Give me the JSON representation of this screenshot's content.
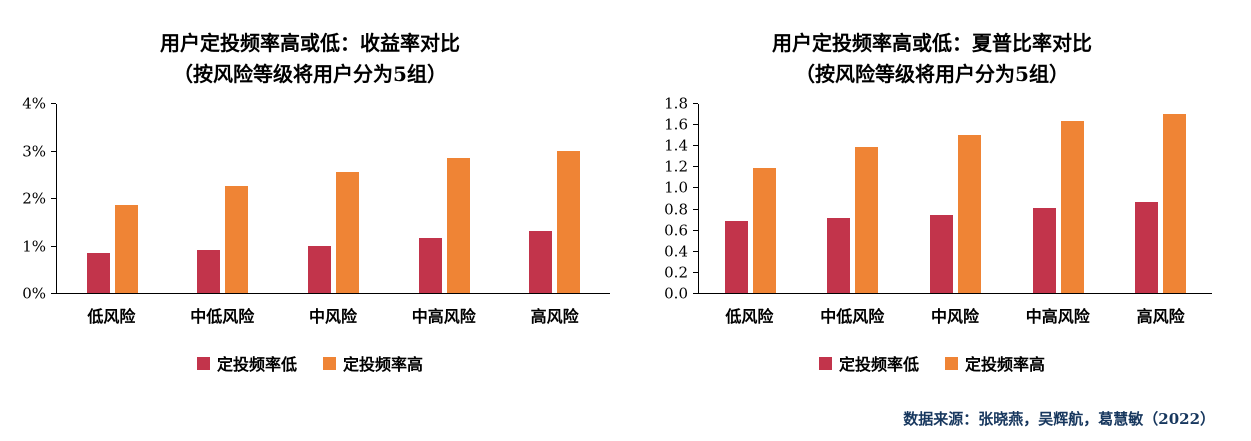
{
  "source_note": "数据来源：张晓燕，吴辉航，葛慧敏（2022）",
  "colors": {
    "series_low": "#C2344B",
    "series_high": "#EF8435",
    "axis": "#000000",
    "source_text": "#17375E"
  },
  "chart_data": [
    {
      "type": "bar",
      "title_line1": "用户定投频率高或低：收益率对比",
      "title_line2": "（按风险等级将用户分为5组）",
      "categories": [
        "低风险",
        "中低风险",
        "中风险",
        "中高风险",
        "高风险"
      ],
      "series": [
        {
          "key": "low-frequency",
          "name": "定投频率低",
          "color_key": "series_low",
          "values": [
            0.85,
            0.9,
            1.0,
            1.15,
            1.3
          ]
        },
        {
          "key": "high-frequency",
          "name": "定投频率高",
          "color_key": "series_high",
          "values": [
            1.85,
            2.25,
            2.55,
            2.85,
            3.0
          ]
        }
      ],
      "ylim": [
        0,
        4
      ],
      "yticks": [
        "0%",
        "1%",
        "2%",
        "3%",
        "4%"
      ],
      "unit": "%",
      "grid": false,
      "legend_position": "bottom"
    },
    {
      "type": "bar",
      "title_line1": "用户定投频率高或低：夏普比率对比",
      "title_line2": "（按风险等级将用户分为5组）",
      "categories": [
        "低风险",
        "中低风险",
        "中风险",
        "中高风险",
        "高风险"
      ],
      "series": [
        {
          "key": "low-frequency",
          "name": "定投频率低",
          "color_key": "series_low",
          "values": [
            0.68,
            0.71,
            0.74,
            0.81,
            0.86
          ]
        },
        {
          "key": "high-frequency",
          "name": "定投频率高",
          "color_key": "series_high",
          "values": [
            1.18,
            1.38,
            1.5,
            1.63,
            1.7
          ]
        }
      ],
      "ylim": [
        0,
        1.8
      ],
      "yticks": [
        "0.0",
        "0.2",
        "0.4",
        "0.6",
        "0.8",
        "1.0",
        "1.2",
        "1.4",
        "1.6",
        "1.8"
      ],
      "unit": "",
      "grid": false,
      "legend_position": "bottom"
    }
  ]
}
